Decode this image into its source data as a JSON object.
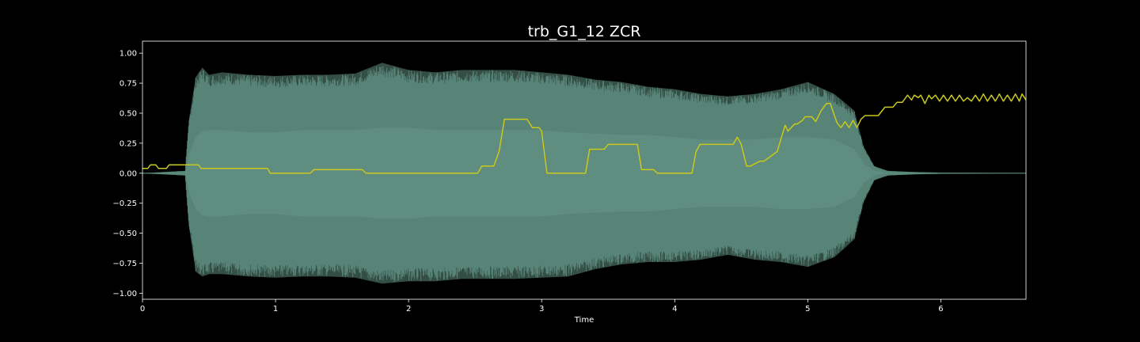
{
  "chart_data": {
    "type": "line",
    "title": "trb_G1_12 ZCR",
    "xlabel": "Time",
    "ylabel": "",
    "xlim": [
      0,
      6.64
    ],
    "ylim": [
      -1.05,
      1.1
    ],
    "xticks": [
      0,
      1,
      2,
      3,
      4,
      5,
      6
    ],
    "yticks": [
      -1.0,
      -0.75,
      -0.5,
      -0.25,
      0.0,
      0.25,
      0.5,
      0.75,
      1.0
    ],
    "xtick_labels": [
      "0",
      "1",
      "2",
      "3",
      "4",
      "5",
      "6"
    ],
    "ytick_labels": [
      "−1.00",
      "−0.75",
      "−0.50",
      "−0.25",
      "0.00",
      "0.25",
      "0.50",
      "0.75",
      "1.00"
    ],
    "grid": false,
    "series": [
      {
        "kind": "waveform-envelope",
        "color": "#5e8e80",
        "inner_color": "#3a564f",
        "time": [
          0,
          0.32,
          0.35,
          0.4,
          0.45,
          0.5,
          0.6,
          0.8,
          1.0,
          1.2,
          1.4,
          1.6,
          1.8,
          2.0,
          2.2,
          2.4,
          2.6,
          2.8,
          3.0,
          3.2,
          3.4,
          3.6,
          3.8,
          4.0,
          4.2,
          4.4,
          4.6,
          4.8,
          5.0,
          5.2,
          5.35,
          5.42,
          5.5,
          5.6,
          5.8,
          6.0,
          6.64
        ],
        "upper": [
          0.0,
          0.02,
          0.45,
          0.8,
          0.88,
          0.82,
          0.84,
          0.82,
          0.81,
          0.82,
          0.82,
          0.83,
          0.92,
          0.86,
          0.84,
          0.86,
          0.86,
          0.86,
          0.84,
          0.82,
          0.78,
          0.76,
          0.72,
          0.7,
          0.66,
          0.64,
          0.66,
          0.7,
          0.76,
          0.66,
          0.52,
          0.22,
          0.06,
          0.02,
          0.01,
          0.005,
          0.0
        ],
        "lower": [
          0.0,
          -0.02,
          -0.45,
          -0.82,
          -0.86,
          -0.84,
          -0.84,
          -0.86,
          -0.87,
          -0.86,
          -0.86,
          -0.87,
          -0.92,
          -0.9,
          -0.9,
          -0.88,
          -0.88,
          -0.88,
          -0.87,
          -0.86,
          -0.8,
          -0.76,
          -0.74,
          -0.74,
          -0.72,
          -0.68,
          -0.72,
          -0.74,
          -0.78,
          -0.7,
          -0.55,
          -0.24,
          -0.06,
          -0.02,
          -0.01,
          -0.005,
          0.0
        ],
        "inner_upper": [
          0.0,
          0.0,
          0.15,
          0.3,
          0.35,
          0.36,
          0.36,
          0.34,
          0.34,
          0.36,
          0.36,
          0.36,
          0.38,
          0.38,
          0.36,
          0.36,
          0.36,
          0.36,
          0.36,
          0.34,
          0.33,
          0.32,
          0.32,
          0.3,
          0.28,
          0.28,
          0.28,
          0.3,
          0.3,
          0.28,
          0.2,
          0.08,
          0.02,
          0.0,
          0.0,
          0.0,
          0.0
        ],
        "inner_lower": [
          0.0,
          0.0,
          -0.15,
          -0.3,
          -0.35,
          -0.36,
          -0.36,
          -0.34,
          -0.34,
          -0.36,
          -0.36,
          -0.36,
          -0.38,
          -0.38,
          -0.36,
          -0.36,
          -0.36,
          -0.36,
          -0.36,
          -0.34,
          -0.33,
          -0.32,
          -0.32,
          -0.3,
          -0.28,
          -0.28,
          -0.28,
          -0.3,
          -0.3,
          -0.28,
          -0.2,
          -0.08,
          -0.02,
          0.0,
          0.0,
          0.0,
          0.0
        ]
      },
      {
        "kind": "line",
        "color": "#c8c81e",
        "x": [
          0,
          0.04,
          0.06,
          0.1,
          0.12,
          0.18,
          0.2,
          0.42,
          0.44,
          0.94,
          0.96,
          1.26,
          1.29,
          1.65,
          1.68,
          2.52,
          2.55,
          2.64,
          2.68,
          2.72,
          2.89,
          2.93,
          2.98,
          3.0,
          3.04,
          3.33,
          3.36,
          3.47,
          3.5,
          3.72,
          3.75,
          3.84,
          3.87,
          4.13,
          4.16,
          4.19,
          4.44,
          4.47,
          4.5,
          4.54,
          4.57,
          4.64,
          4.67,
          4.77,
          4.8,
          4.83,
          4.85,
          4.9,
          4.92,
          4.96,
          4.98,
          5.03,
          5.06,
          5.1,
          5.14,
          5.17,
          5.2,
          5.22,
          5.25,
          5.28,
          5.31,
          5.34,
          5.37,
          5.4,
          5.43,
          5.45,
          5.48,
          5.53,
          5.58,
          5.61,
          5.64,
          5.67,
          5.71,
          5.75,
          5.78,
          5.8,
          5.83,
          5.85,
          5.88,
          5.91,
          5.93,
          5.96,
          5.99,
          6.02,
          6.05,
          6.08,
          6.11,
          6.14,
          6.17,
          6.2,
          6.23,
          6.26,
          6.29,
          6.32,
          6.35,
          6.38,
          6.41,
          6.44,
          6.47,
          6.5,
          6.53,
          6.56,
          6.59,
          6.61,
          6.64
        ],
        "y": [
          0.04,
          0.04,
          0.07,
          0.07,
          0.04,
          0.04,
          0.07,
          0.07,
          0.04,
          0.04,
          0.0,
          0.0,
          0.03,
          0.03,
          0.0,
          0.0,
          0.06,
          0.06,
          0.18,
          0.45,
          0.45,
          0.38,
          0.38,
          0.35,
          0.0,
          0.0,
          0.2,
          0.2,
          0.24,
          0.24,
          0.03,
          0.03,
          0.0,
          0.0,
          0.18,
          0.24,
          0.24,
          0.3,
          0.24,
          0.06,
          0.06,
          0.1,
          0.1,
          0.18,
          0.29,
          0.4,
          0.35,
          0.41,
          0.41,
          0.44,
          0.47,
          0.47,
          0.43,
          0.52,
          0.58,
          0.58,
          0.48,
          0.42,
          0.38,
          0.43,
          0.38,
          0.44,
          0.38,
          0.45,
          0.48,
          0.48,
          0.48,
          0.48,
          0.55,
          0.55,
          0.55,
          0.59,
          0.59,
          0.65,
          0.61,
          0.65,
          0.63,
          0.65,
          0.58,
          0.65,
          0.62,
          0.65,
          0.6,
          0.65,
          0.6,
          0.65,
          0.6,
          0.65,
          0.6,
          0.63,
          0.6,
          0.65,
          0.6,
          0.66,
          0.6,
          0.65,
          0.6,
          0.66,
          0.6,
          0.65,
          0.6,
          0.66,
          0.6,
          0.66,
          0.61
        ]
      }
    ],
    "colors": {
      "background": "#000000",
      "axes": "#ffffff"
    }
  }
}
